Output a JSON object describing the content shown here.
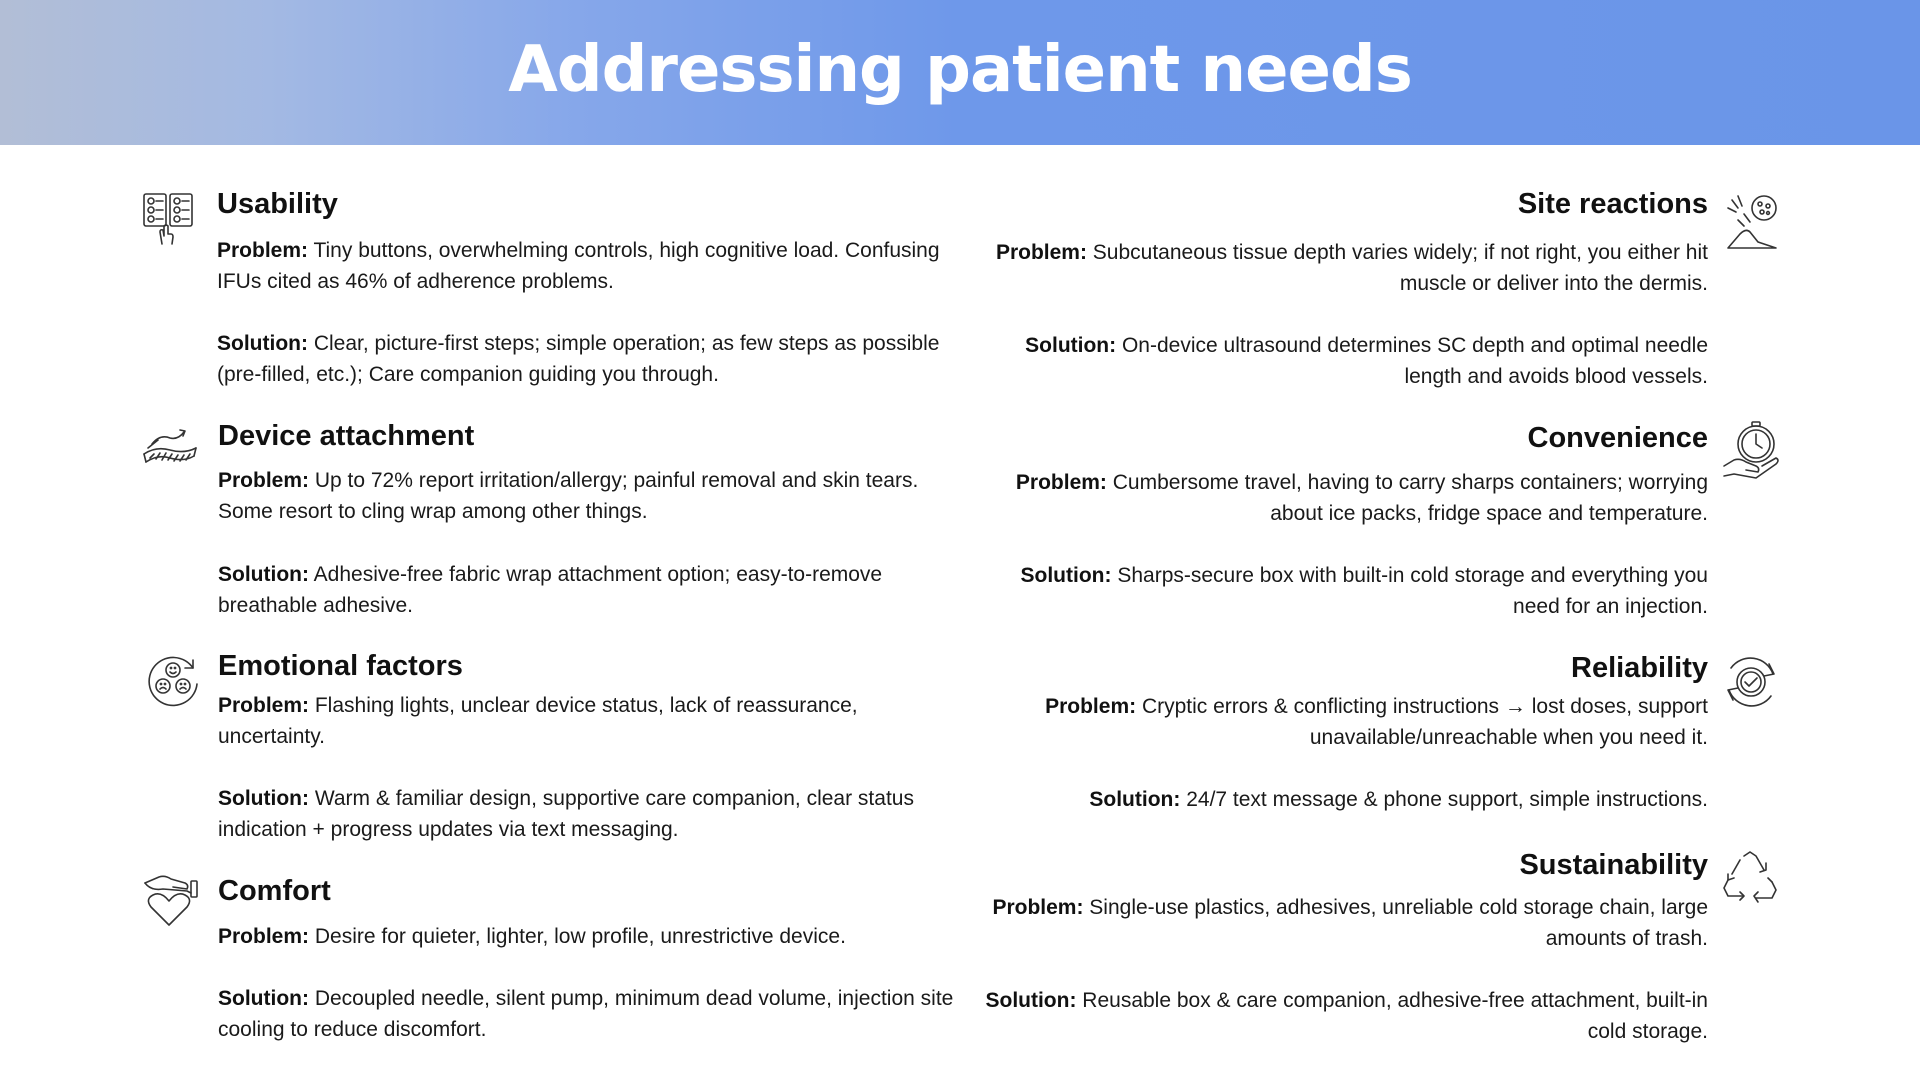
{
  "title": "Addressing patient needs",
  "colors": {
    "header_left": "#b2bed6",
    "header_right": "#6a95e8",
    "title_text": "#ffffff"
  },
  "left": [
    {
      "title": "Usability",
      "icon": "instruction-steps-icon",
      "problem_label": "Problem:",
      "problem": " Tiny buttons, overwhelming controls, high cognitive load. Confusing IFUs cited as 46% of adherence problems.",
      "solution_label": "Solution:",
      "solution": " Clear, picture-first steps; simple operation; as few steps as possible (pre-filled, etc.); Care companion guiding you through."
    },
    {
      "title": "Device attachment",
      "icon": "skin-patch-icon",
      "problem_label": "Problem:",
      "problem": " Up to 72% report irritation/allergy; painful removal and skin tears. Some resort to cling wrap among other things.",
      "solution_label": "Solution:",
      "solution": " Adhesive-free fabric wrap attachment option; easy-to-remove breathable adhesive."
    },
    {
      "title": "Emotional factors",
      "icon": "emotions-cycle-icon",
      "problem_label": "Problem:",
      "problem": " Flashing lights, unclear device status, lack of reassurance, uncertainty.",
      "solution_label": "Solution:",
      "solution": " Warm & familiar design, supportive care companion, clear status indication + progress updates via text messaging."
    },
    {
      "title": "Comfort",
      "icon": "hand-heart-icon",
      "problem_label": "Problem:",
      "problem": " Desire for quieter, lighter, low profile, unrestrictive device.",
      "solution_label": "Solution:",
      "solution": " Decoupled needle, silent pump, minimum dead volume, injection site cooling to reduce discomfort."
    }
  ],
  "right": [
    {
      "title": "Site reactions",
      "icon": "skin-reaction-icon",
      "problem_label": "Problem:",
      "problem": " Subcutaneous tissue depth varies widely; if not right, you either hit muscle or deliver into the dermis.",
      "solution_label": "Solution:",
      "solution": "  On-device ultrasound determines SC depth and optimal needle length and avoids blood vessels."
    },
    {
      "title": "Convenience",
      "icon": "hand-clock-icon",
      "problem_label": "Problem:",
      "problem": " Cumbersome travel, having to carry sharps containers; worrying about ice packs, fridge space and temperature.",
      "solution_label": "Solution:",
      "solution": " Sharps-secure box with built-in cold storage and everything you need for an injection."
    },
    {
      "title": "Reliability",
      "icon": "check-cycle-icon",
      "problem_label": "Problem:",
      "problem": " Cryptic errors & conflicting instructions → lost doses, support unavailable/unreachable when you need it.",
      "solution_label": "Solution:",
      "solution": " 24/7 text message & phone support, simple instructions."
    },
    {
      "title": "Sustainability",
      "icon": "recycle-icon",
      "problem_label": "Problem:",
      "problem": " Single-use plastics, adhesives, unreliable cold storage chain, large amounts of trash.",
      "solution_label": "Solution:",
      "solution": " Reusable box & care companion, adhesive-free attachment, built-in cold storage."
    }
  ]
}
